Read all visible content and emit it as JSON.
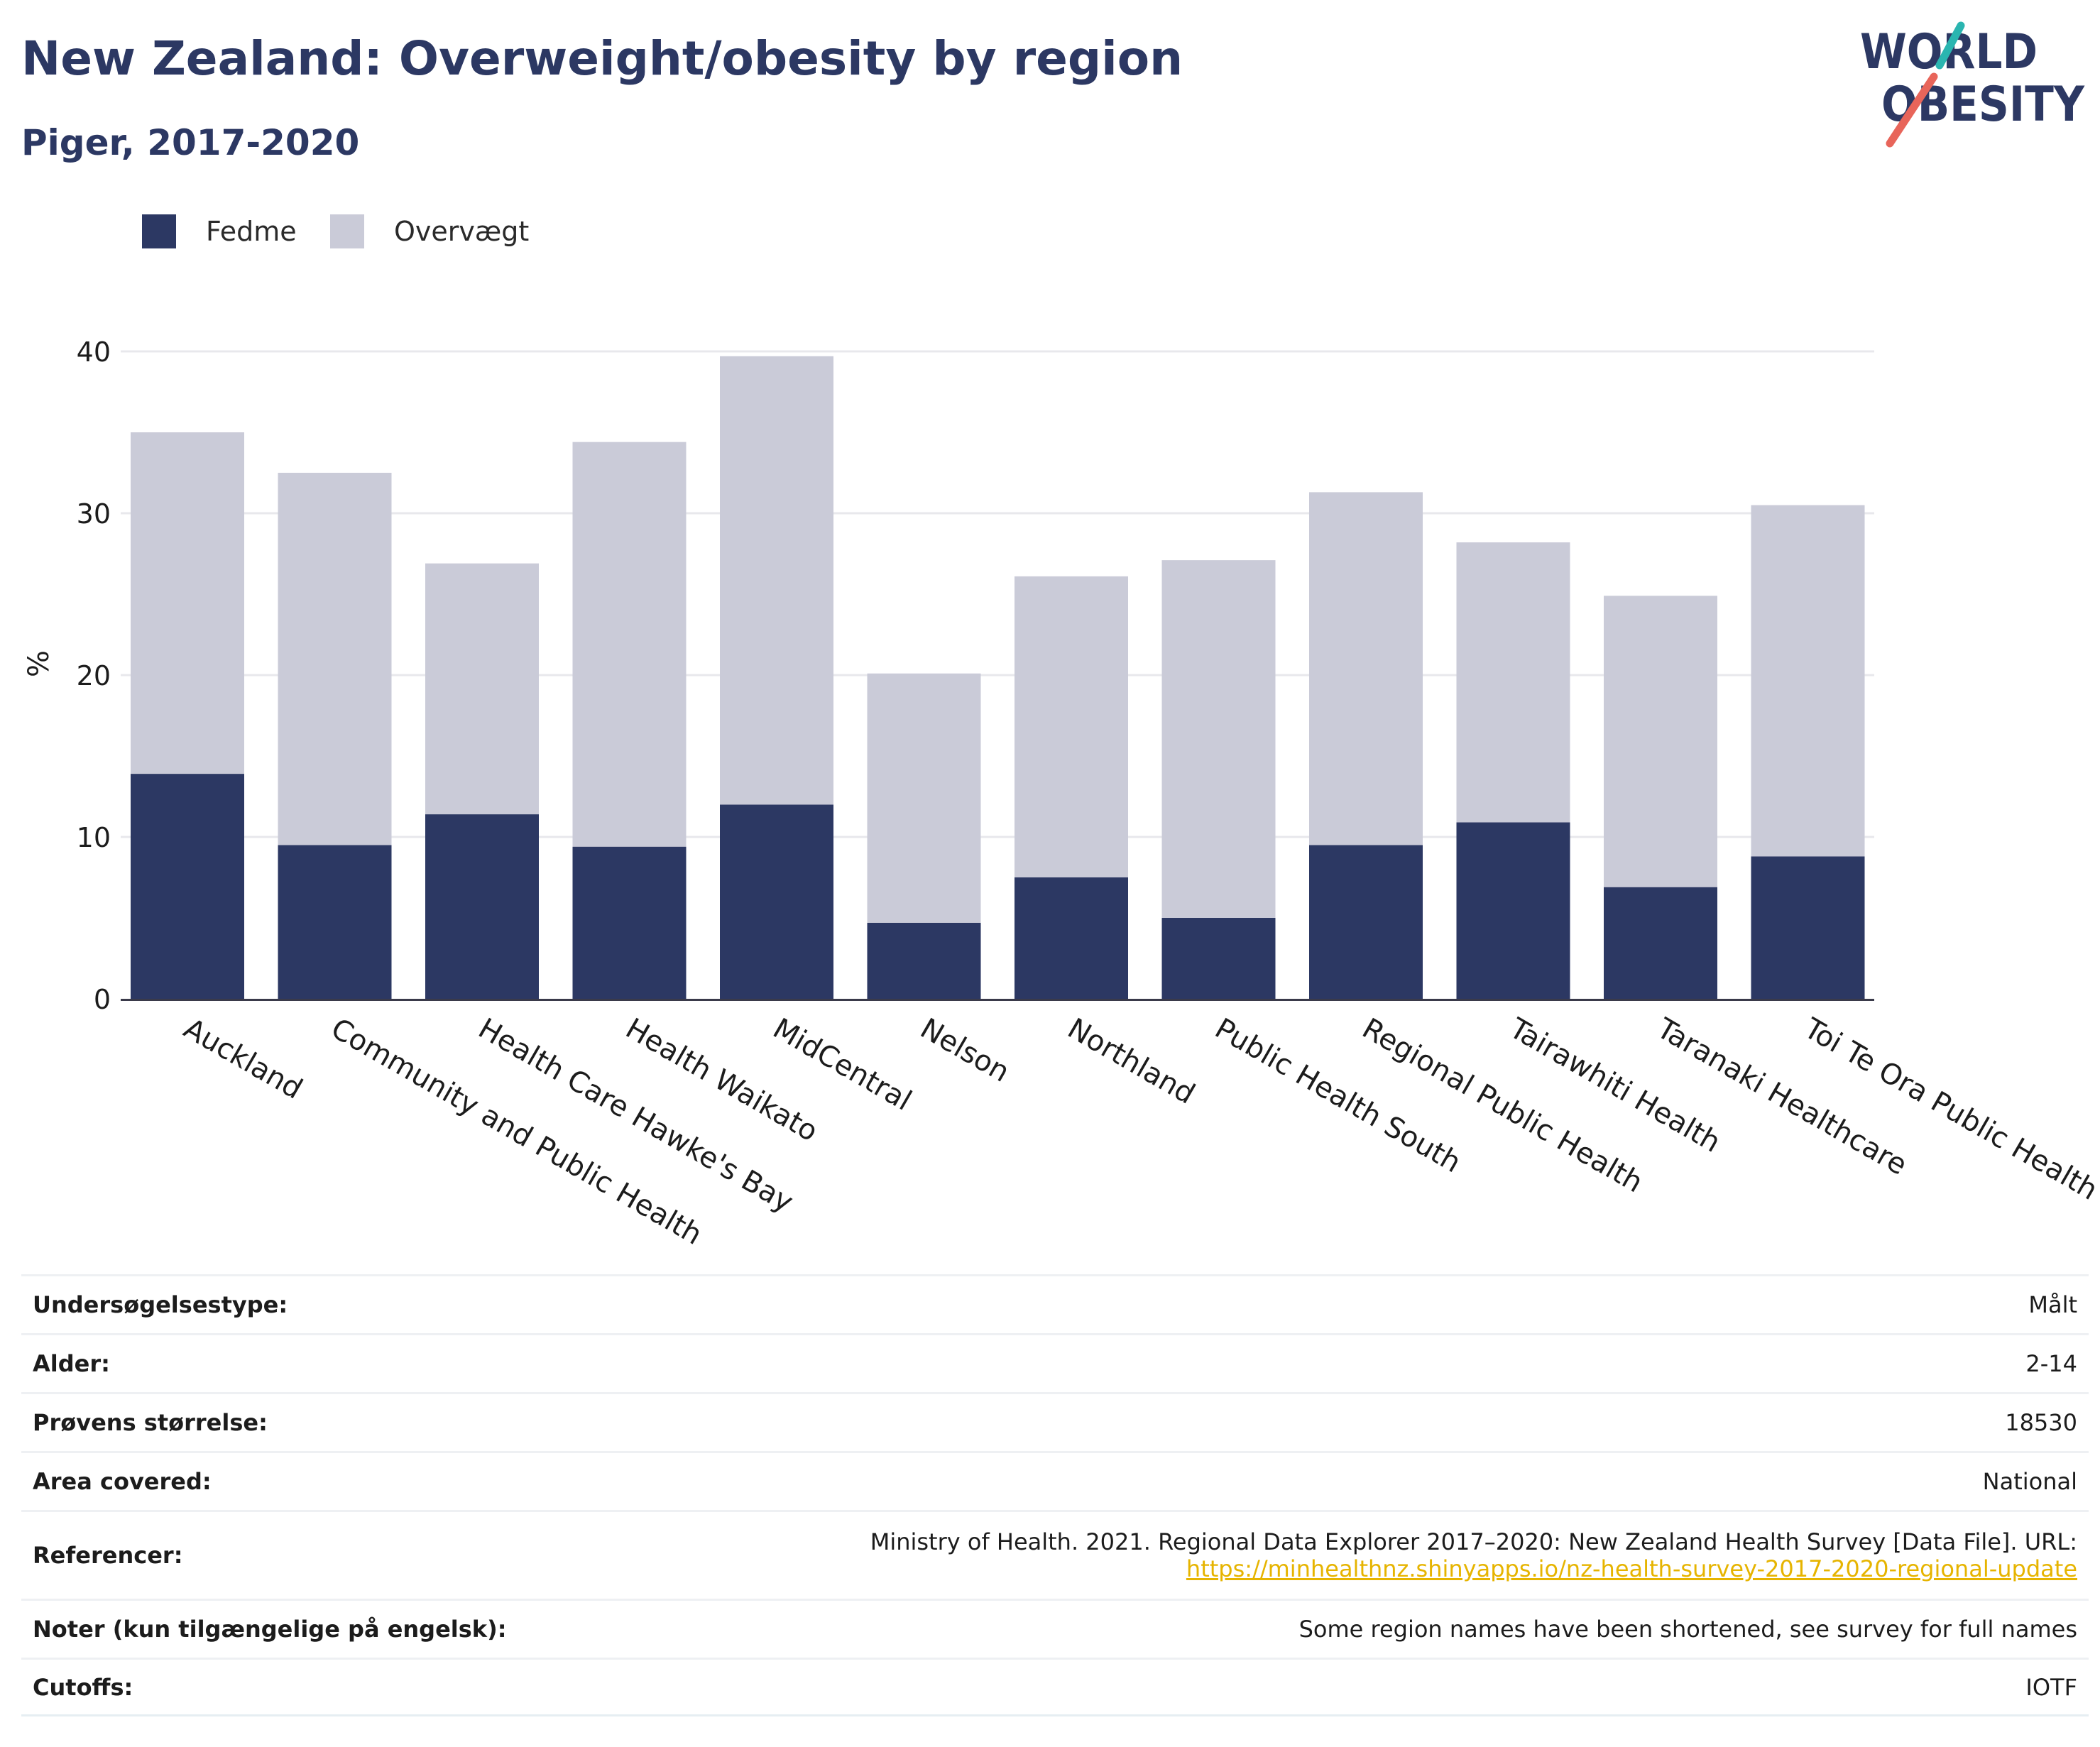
{
  "header": {
    "title": "New Zealand: Overweight/obesity by region",
    "subtitle": "Piger, 2017-2020",
    "logo_line1": "WORLD",
    "logo_line2": "OBESITY"
  },
  "legend": {
    "items": [
      {
        "label": "Fedme",
        "color": "#2c3863"
      },
      {
        "label": "Overvægt",
        "color": "#cacbd8"
      }
    ]
  },
  "chart_data": {
    "type": "bar",
    "stacked": true,
    "title": "New Zealand: Overweight/obesity by region",
    "subtitle": "Piger, 2017-2020",
    "ylabel": "%",
    "xlabel": "",
    "ylim": [
      0,
      40
    ],
    "yticks": [
      0,
      10,
      20,
      30,
      40
    ],
    "grid": true,
    "legend_position": "top-left",
    "categories": [
      "Auckland",
      "Community and Public Health",
      "Health Care Hawke's Bay",
      "Health Waikato",
      "MidCentral",
      "Nelson",
      "Northland",
      "Public Health South",
      "Regional Public Health",
      "Tairawhiti Health",
      "Taranaki Healthcare",
      "Toi Te Ora Public Health"
    ],
    "series": [
      {
        "name": "Fedme",
        "color": "#2c3863",
        "values": [
          13.9,
          9.5,
          11.4,
          9.4,
          12.0,
          4.7,
          7.5,
          5.0,
          9.5,
          10.9,
          6.9,
          8.8
        ]
      },
      {
        "name": "Overvægt",
        "color": "#cacbd8",
        "values": [
          21.1,
          23.0,
          15.5,
          25.0,
          27.7,
          15.4,
          18.6,
          22.1,
          21.8,
          17.3,
          18.0,
          21.7
        ]
      }
    ]
  },
  "meta": {
    "rows": [
      {
        "label": "Undersøgelsestype:",
        "value": "Målt"
      },
      {
        "label": "Alder:",
        "value": "2-14"
      },
      {
        "label": "Prøvens størrelse:",
        "value": "18530"
      },
      {
        "label": "Area covered:",
        "value": "National"
      },
      {
        "label": "Referencer:",
        "value": "Ministry of Health. 2021. Regional Data Explorer 2017–2020: New Zealand Health Survey [Data File]. URL:",
        "link": "https://minhealthnz.shinyapps.io/nz-health-survey-2017-2020-regional-update"
      },
      {
        "label": "Noter (kun tilgængelige på engelsk):",
        "value": "Some region names have been shortened, see survey for full names"
      },
      {
        "label": "Cutoffs:",
        "value": "IOTF"
      }
    ]
  }
}
